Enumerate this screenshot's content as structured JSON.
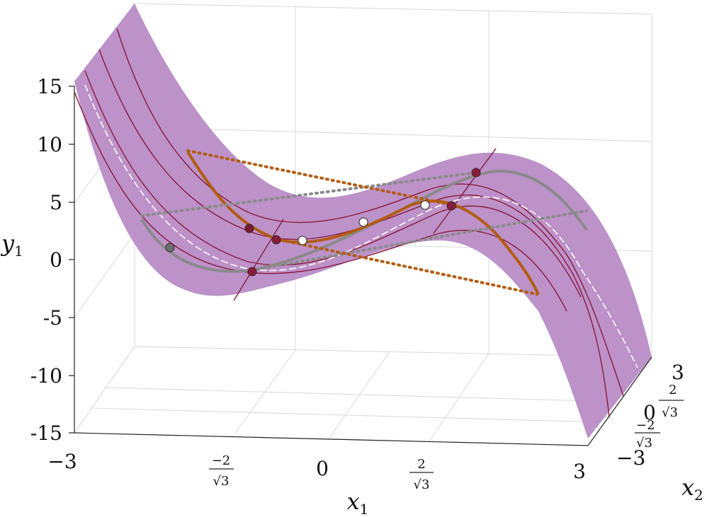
{
  "chart_data": {
    "type": "surface3d",
    "title": "",
    "xlabel": "x",
    "xlabel_sub": "1",
    "ylabel": "x",
    "ylabel_sub": "2",
    "zlabel": "y",
    "zlabel_sub": "1",
    "xlim": [
      -3,
      3
    ],
    "ylim": [
      -3,
      3
    ],
    "zlim": [
      -15,
      15
    ],
    "x_ticks": [
      {
        "value": -3,
        "label": "−3"
      },
      {
        "value": -1.1547,
        "num": "−2",
        "den": "√3"
      },
      {
        "value": 0,
        "label": "0"
      },
      {
        "value": 1.1547,
        "num": "2",
        "den": "√3"
      },
      {
        "value": 3,
        "label": "3"
      }
    ],
    "y_ticks": [
      {
        "value": -3,
        "label": "−3"
      },
      {
        "value": -1.1547,
        "num": "−2",
        "den": "√3"
      },
      {
        "value": 0,
        "label": "0"
      },
      {
        "value": 1.1547,
        "num": "2",
        "den": "√3"
      },
      {
        "value": 3,
        "label": "3"
      }
    ],
    "z_ticks": [
      {
        "value": 15,
        "label": "15"
      },
      {
        "value": 10,
        "label": "10"
      },
      {
        "value": 5,
        "label": "5"
      },
      {
        "value": 0,
        "label": "0"
      },
      {
        "value": -5,
        "label": "-5"
      },
      {
        "value": -10,
        "label": "-10"
      },
      {
        "value": -15,
        "label": "-15"
      }
    ],
    "grid": true,
    "surface_color": "#b88cc6",
    "curve_color": "#8b1a3a",
    "orange_color": "#b35c10",
    "gray_color": "#8a8a8a",
    "series": [
      {
        "kind": "curve",
        "x": [
          -3,
          -2.5,
          -2,
          -1.5,
          -1,
          -0.5,
          0,
          0.5,
          1,
          1.5,
          2,
          2.5,
          3
        ],
        "z": [
          13.5,
          6.9,
          2.0,
          -1.3,
          -3.0,
          -3.2,
          -2.3,
          -0.9,
          0.5,
          1.2,
          0.8,
          -1.6,
          -5.9
        ]
      },
      {
        "kind": "points",
        "points": [
          {
            "x": -2.3,
            "z": 0.3,
            "color": "#6f6f6f"
          },
          {
            "x": -1.2,
            "z": 1.9,
            "color": "#7a1a2c"
          },
          {
            "x": -0.6,
            "z": 0.5,
            "color": "#8b1a3a"
          },
          {
            "x": -0.1,
            "z": 0.3,
            "color": "#ffffff"
          },
          {
            "x": 0.6,
            "z": 2.5,
            "color": "#ffffff"
          },
          {
            "x": 1.3,
            "z": 4.5,
            "color": "#ffffff"
          },
          {
            "x": 1.8,
            "z": 4.3,
            "color": "#8b1a3a"
          },
          {
            "x": -1.4,
            "z": -1.4,
            "color": "#8b1a3a"
          },
          {
            "x": 2.0,
            "z": 7.0,
            "color": "#8b1a3a"
          }
        ]
      }
    ]
  }
}
